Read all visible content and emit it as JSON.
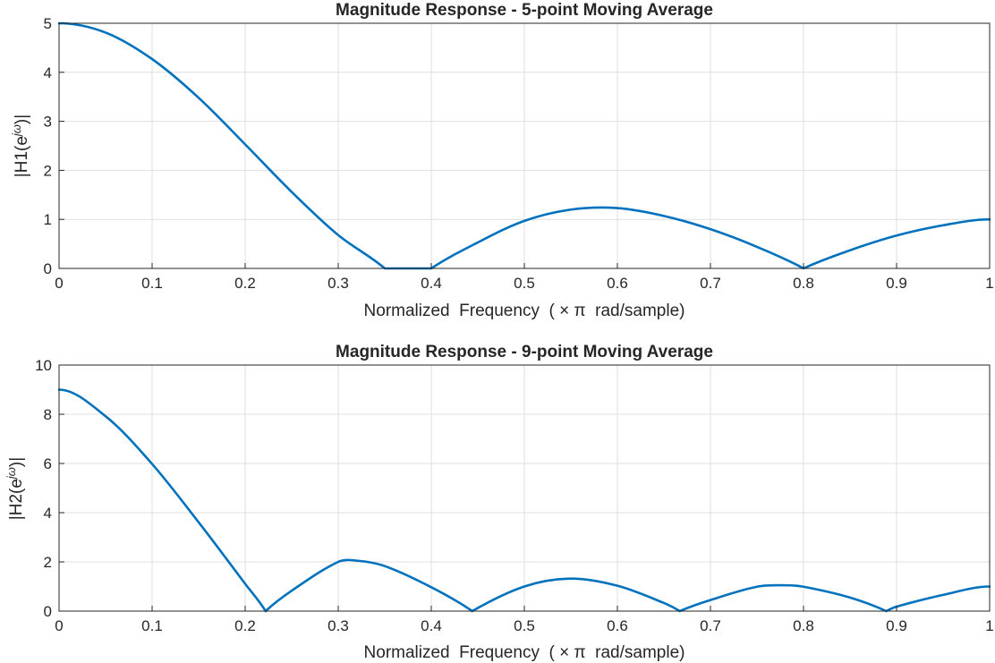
{
  "chart_data": [
    {
      "type": "line",
      "title": "Magnitude Response - 5-point Moving Average",
      "xlabel": "Normalized  Frequency  ( × π  rad/sample)",
      "ylabel": "|H1(e^{jω})|",
      "ylabel_parts": {
        "base": "|H1(e",
        "sup": "jω",
        "end": ")|"
      },
      "xlim": [
        0,
        1
      ],
      "ylim": [
        0,
        5
      ],
      "xticks": [
        "0",
        "0.1",
        "0.2",
        "0.3",
        "0.4",
        "0.5",
        "0.6",
        "0.7",
        "0.8",
        "0.9",
        "1"
      ],
      "yticks": [
        "0",
        "1",
        "2",
        "3",
        "4",
        "5"
      ],
      "grid": true,
      "color": "#0072bd",
      "series": [
        {
          "x": [
            0,
            0.05,
            0.1,
            0.15,
            0.2,
            0.25,
            0.3,
            0.35,
            0.4,
            0.45,
            0.5,
            0.55,
            0.6,
            0.65,
            0.7,
            0.75,
            0.8,
            0.85,
            0.9,
            0.95,
            1
          ],
          "values": [
            5.0,
            4.81,
            4.27,
            3.48,
            2.53,
            1.56,
            0.68,
            0.0,
            0.0,
            0.53,
            0.97,
            1.2,
            1.23,
            1.07,
            0.8,
            0.44,
            0.0,
            0.37,
            0.67,
            0.88,
            1.0
          ]
        }
      ]
    },
    {
      "type": "line",
      "title": "Magnitude Response - 9-point Moving Average",
      "xlabel": "Normalized  Frequency  ( × π  rad/sample)",
      "ylabel": "|H2(e^{jω})|",
      "ylabel_parts": {
        "base": "|H2(e",
        "sup": "jω",
        "end": ")|"
      },
      "xlim": [
        0,
        1
      ],
      "ylim": [
        0,
        10
      ],
      "xticks": [
        "0",
        "0.1",
        "0.2",
        "0.3",
        "0.4",
        "0.5",
        "0.6",
        "0.7",
        "0.8",
        "0.9",
        "1"
      ],
      "yticks": [
        "0",
        "2",
        "4",
        "6",
        "8",
        "10"
      ],
      "grid": true,
      "color": "#0072bd",
      "series": [
        {
          "x": [
            0,
            0.05,
            0.1,
            0.15,
            0.2,
            0.222,
            0.25,
            0.3,
            0.32,
            0.35,
            0.4,
            0.444,
            0.5,
            0.55,
            0.6,
            0.65,
            0.667,
            0.7,
            0.75,
            0.78,
            0.8,
            0.85,
            0.889,
            0.9,
            0.95,
            1
          ],
          "values": [
            9.0,
            7.92,
            5.98,
            3.61,
            1.11,
            0.0,
            0.83,
            2.0,
            2.05,
            1.83,
            0.97,
            0.0,
            1.0,
            1.32,
            1.03,
            0.33,
            0.0,
            0.45,
            0.99,
            1.05,
            0.99,
            0.55,
            0.0,
            0.18,
            0.66,
            1.0
          ]
        }
      ]
    }
  ]
}
